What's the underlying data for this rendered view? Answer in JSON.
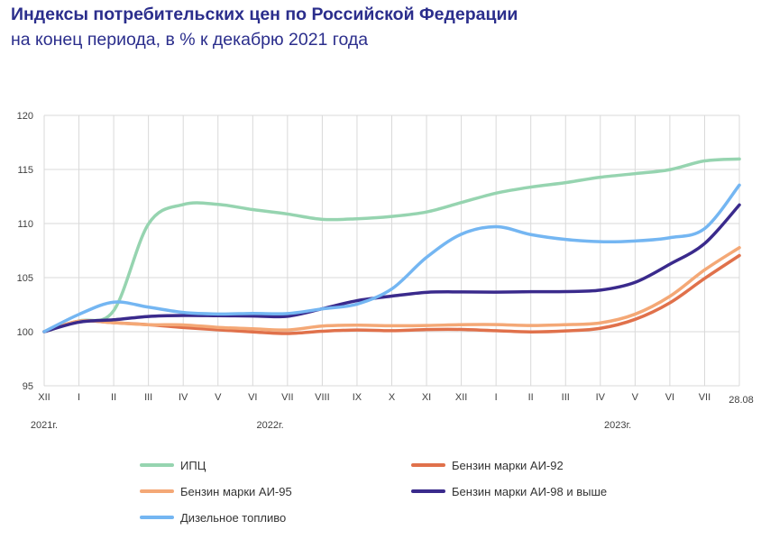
{
  "header": {
    "title": "Индексы потребительских цен по Российской Федерации",
    "subtitle": "на конец периода, в % к декабрю 2021 года"
  },
  "chart_data": {
    "type": "line",
    "ylim": [
      95,
      120
    ],
    "yticks": [
      "95",
      "100",
      "105",
      "110",
      "115",
      "120"
    ],
    "grid": true,
    "legend_position": "bottom",
    "categories": [
      "XII",
      "I",
      "II",
      "III",
      "IV",
      "V",
      "VI",
      "VII",
      "VIII",
      "IX",
      "X",
      "XI",
      "XII",
      "I",
      "II",
      "III",
      "IV",
      "V",
      "VI",
      "VII",
      "28.08"
    ],
    "year_labels": [
      {
        "label": "2021г.",
        "at_index": 0
      },
      {
        "label": "2022г.",
        "at_index": 6.5
      },
      {
        "label": "2023г.",
        "at_index": 16.5
      }
    ],
    "series": [
      {
        "name": "ИПЦ",
        "color": "#96d4b0",
        "values": [
          100.0,
          100.99,
          101.95,
          109.96,
          111.76,
          111.77,
          111.29,
          110.88,
          110.39,
          110.44,
          110.66,
          111.07,
          111.94,
          112.81,
          113.37,
          113.78,
          114.28,
          114.61,
          114.98,
          115.79,
          115.97
        ]
      },
      {
        "name": "Бензин марки АИ-92",
        "color": "#e0714b",
        "values": [
          100.0,
          100.97,
          100.83,
          100.65,
          100.39,
          100.18,
          99.98,
          99.83,
          100.04,
          100.16,
          100.09,
          100.2,
          100.21,
          100.09,
          99.98,
          100.07,
          100.31,
          101.14,
          102.67,
          104.92,
          107.04
        ]
      },
      {
        "name": "Бензин марки АИ-95",
        "color": "#f4a876",
        "values": [
          100.0,
          100.97,
          100.83,
          100.65,
          100.63,
          100.4,
          100.27,
          100.16,
          100.52,
          100.6,
          100.55,
          100.57,
          100.65,
          100.66,
          100.57,
          100.65,
          100.81,
          101.62,
          103.27,
          105.71,
          107.77
        ]
      },
      {
        "name": "Бензин марки АИ-98 и выше",
        "color": "#3a2a8c",
        "values": [
          100.0,
          100.88,
          101.1,
          101.41,
          101.5,
          101.48,
          101.45,
          101.43,
          102.12,
          102.87,
          103.29,
          103.64,
          103.68,
          103.66,
          103.7,
          103.71,
          103.84,
          104.56,
          106.24,
          108.15,
          111.72
        ]
      },
      {
        "name": "Дизельное топливо",
        "color": "#74b6f2",
        "values": [
          100.0,
          101.6,
          102.73,
          102.27,
          101.78,
          101.64,
          101.69,
          101.68,
          102.11,
          102.55,
          103.95,
          106.87,
          109.01,
          109.71,
          108.98,
          108.53,
          108.32,
          108.39,
          108.69,
          109.53,
          113.55
        ]
      }
    ]
  }
}
